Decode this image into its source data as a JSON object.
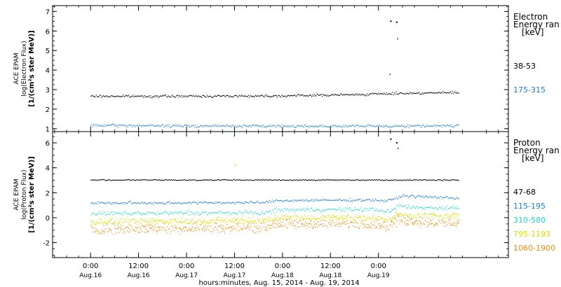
{
  "chart_data": [
    {
      "type": "scatter",
      "panel": "electron",
      "ylabel_lines": [
        "ACE EPAM",
        "log(Electron Flux)",
        "[1/(cm²s ster MeV)]"
      ],
      "ylim": [
        0.85,
        7.3
      ],
      "yticks": [
        1,
        2,
        3,
        4,
        5,
        6,
        7
      ],
      "legend_title_lines": [
        "Electron",
        "Energy ran",
        "[keV]"
      ],
      "series": [
        {
          "name": "38-53",
          "color": "#000000",
          "points": [
            [
              0,
              2.68
            ],
            [
              24,
              2.68
            ],
            [
              48,
              2.7
            ],
            [
              66,
              2.76
            ],
            [
              78,
              2.83
            ],
            [
              90,
              2.86
            ],
            [
              92,
              2.87
            ]
          ],
          "spikes": [
            [
              75.1,
              6.5
            ],
            [
              76.6,
              6.45
            ]
          ]
        },
        {
          "name": "175-315",
          "color": "#1e7fd8",
          "points": [
            [
              0,
              1.18
            ],
            [
              24,
              1.16
            ],
            [
              48,
              1.15
            ],
            [
              72,
              1.15
            ],
            [
              92,
              1.17
            ]
          ],
          "spikes": [
            [
              74.9,
              3.78
            ],
            [
              76.8,
              5.6
            ]
          ]
        }
      ]
    },
    {
      "type": "scatter",
      "panel": "proton",
      "ylabel_lines": [
        "ACE EPAM",
        "log(Proton Flux)",
        "[1/(cm²s ster MeV)]"
      ],
      "ylim": [
        -3.2,
        6.9
      ],
      "yticks": [
        -2,
        0,
        2,
        4,
        6
      ],
      "legend_title_lines": [
        "Proton",
        "Energy ran",
        "[keV]"
      ],
      "series": [
        {
          "name": "47-68",
          "color": "#000000",
          "points": [
            [
              0,
              3.05
            ],
            [
              48,
              3.05
            ],
            [
              92,
              3.05
            ]
          ],
          "spikes": [
            [
              75.1,
              6.3
            ],
            [
              76.6,
              6.0
            ]
          ]
        },
        {
          "name": "115-195",
          "color": "#1e7fd8",
          "points": [
            [
              0,
              1.2
            ],
            [
              24,
              1.22
            ],
            [
              44,
              1.25
            ],
            [
              46,
              1.4
            ],
            [
              70,
              1.45
            ],
            [
              74,
              1.38
            ],
            [
              75,
              1.45
            ],
            [
              76,
              1.55
            ],
            [
              78,
              1.8
            ],
            [
              80,
              1.75
            ],
            [
              92,
              1.6
            ]
          ],
          "spikes": [
            [
              76.9,
              5.55
            ]
          ]
        },
        {
          "name": "310-580",
          "color": "#22d8d0",
          "points": [
            [
              0,
              0.35
            ],
            [
              24,
              0.4
            ],
            [
              44,
              0.42
            ],
            [
              46,
              0.65
            ],
            [
              70,
              0.7
            ],
            [
              74,
              0.55
            ],
            [
              75,
              0.5
            ],
            [
              77,
              1.0
            ],
            [
              80,
              0.85
            ],
            [
              92,
              0.8
            ]
          ],
          "spikes": []
        },
        {
          "name": "795-1193",
          "color": "#dddd00",
          "points": [
            [
              0,
              -0.3
            ],
            [
              24,
              -0.25
            ],
            [
              44,
              -0.2
            ],
            [
              46,
              0.0
            ],
            [
              70,
              0.05
            ],
            [
              74,
              -0.15
            ],
            [
              77,
              0.3
            ],
            [
              80,
              0.2
            ],
            [
              92,
              0.15
            ]
          ],
          "spikes": [
            [
              36.2,
              4.2
            ]
          ]
        },
        {
          "name": "1060-1900",
          "color": "#f08c10",
          "points": [
            [
              0,
              -0.9
            ],
            [
              24,
              -0.8
            ],
            [
              44,
              -0.75
            ],
            [
              46,
              -0.5
            ],
            [
              70,
              -0.45
            ],
            [
              74,
              -0.65
            ],
            [
              77,
              -0.15
            ],
            [
              80,
              -0.3
            ],
            [
              92,
              -0.4
            ]
          ],
          "spikes": []
        }
      ]
    }
  ],
  "xaxis": {
    "xlim": [
      -9.5,
      104.5
    ],
    "tick_step_hours": 12,
    "ticks": [
      {
        "x": 0,
        "time": "0:00",
        "date": "Aug.16"
      },
      {
        "x": 12,
        "time": "12:00",
        "date": "Aug.16"
      },
      {
        "x": 24,
        "time": "0:00",
        "date": "Aug.17"
      },
      {
        "x": 36,
        "time": "12:00",
        "date": "Aug.17"
      },
      {
        "x": 48,
        "time": "0:00",
        "date": "Aug.18"
      },
      {
        "x": 60,
        "time": "12:00",
        "date": "Aug.18"
      },
      {
        "x": 72,
        "time": "0:00",
        "date": "Aug.19"
      }
    ],
    "xlabel": "hours:minutes, Aug. 15, 2014 - Aug. 19, 2014"
  }
}
